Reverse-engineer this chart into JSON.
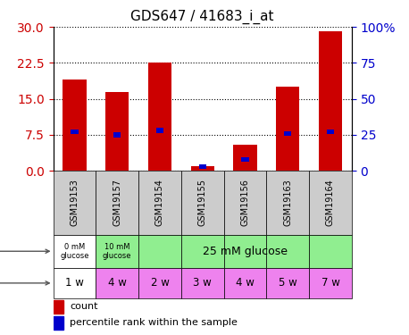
{
  "title": "GDS647 / 41683_i_at",
  "samples": [
    "GSM19153",
    "GSM19157",
    "GSM19154",
    "GSM19155",
    "GSM19156",
    "GSM19163",
    "GSM19164"
  ],
  "count_values": [
    19.0,
    16.5,
    22.5,
    1.0,
    5.5,
    17.5,
    29.0
  ],
  "percentile_values": [
    27,
    25,
    28,
    3,
    8,
    26,
    27
  ],
  "ylim_left": [
    0,
    30
  ],
  "ylim_right": [
    0,
    100
  ],
  "yticks_left": [
    0,
    7.5,
    15,
    22.5,
    30
  ],
  "yticks_right": [
    0,
    25,
    50,
    75,
    100
  ],
  "bar_color": "#cc0000",
  "percentile_color": "#0000cc",
  "grid_color": "#000000",
  "title_fontsize": 11,
  "time_labels": [
    "1 w",
    "4 w",
    "2 w",
    "3 w",
    "4 w",
    "5 w",
    "7 w"
  ],
  "time_colors": [
    "#ffffff",
    "#ee82ee",
    "#ee82ee",
    "#ee82ee",
    "#ee82ee",
    "#ee82ee",
    "#ee82ee"
  ],
  "protocol_assignments": [
    0,
    1,
    2,
    2,
    2,
    2,
    2
  ],
  "protocol_colors": [
    "#ffffff",
    "#90ee90",
    "#90ee90"
  ],
  "protocol_texts_short": [
    "0 mM\nglucose",
    "10 mM\nglucose"
  ],
  "protocol_text_long": "25 mM glucose",
  "sample_bg_color": "#cccccc",
  "ax_label_color_left": "#cc0000",
  "ax_label_color_right": "#0000cc",
  "fig_width": 4.58,
  "fig_height": 3.75,
  "dpi": 100
}
